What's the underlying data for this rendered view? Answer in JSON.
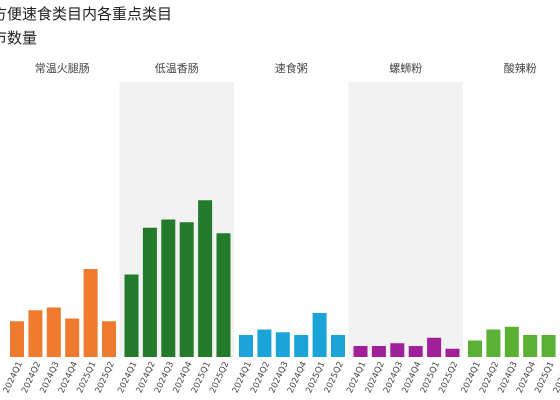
{
  "chart_data": {
    "type": "bar",
    "title_lines": [
      "方便速食类目内各重点类目",
      "市数量"
    ],
    "categories": [
      "2024Q1",
      "2024Q2",
      "2024Q3",
      "2024Q4",
      "2025Q1",
      "2025Q2"
    ],
    "ylim": [
      0,
      100
    ],
    "grid": false,
    "legend": "none",
    "panels": [
      {
        "name": "常温火腿肠",
        "color": "#EE7B30",
        "values": [
          13,
          17,
          18,
          14,
          32,
          13
        ]
      },
      {
        "name": "低温香肠",
        "color": "#237A2A",
        "values": [
          30,
          47,
          50,
          49,
          57,
          45
        ]
      },
      {
        "name": "速食粥",
        "color": "#1AA4D8",
        "values": [
          8,
          10,
          9,
          8,
          16,
          8
        ]
      },
      {
        "name": "螺蛳粉",
        "color": "#A0209A",
        "values": [
          4,
          4,
          5,
          4,
          7,
          3
        ]
      },
      {
        "name": "酸辣粉",
        "color": "#5AB133",
        "values": [
          6,
          10,
          11,
          8,
          8,
          6
        ]
      }
    ]
  }
}
